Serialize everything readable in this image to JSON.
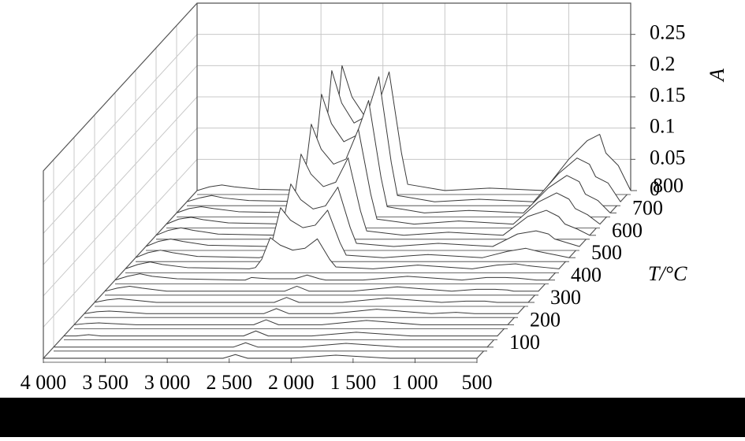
{
  "chart_data": {
    "type": "waterfall",
    "x_title": "",
    "y_title": "T/°C",
    "z_title": "A",
    "color": "#3a3a3a",
    "grid": true,
    "xlim": [
      4000,
      500
    ],
    "xticks": [
      {
        "value": 4000,
        "label": "4 000"
      },
      {
        "value": 3500,
        "label": "3 500"
      },
      {
        "value": 3000,
        "label": "3 000"
      },
      {
        "value": 2500,
        "label": "2 500"
      },
      {
        "value": 2000,
        "label": "2 000"
      },
      {
        "value": 1500,
        "label": "1 500"
      },
      {
        "value": 1000,
        "label": "1 000"
      },
      500
    ],
    "ylim": [
      50,
      800
    ],
    "yticks": [
      100,
      200,
      300,
      400,
      500,
      600,
      700,
      800
    ],
    "zlim": [
      0,
      0.3
    ],
    "zticks": [
      0,
      0.05,
      0.1,
      0.15,
      0.2,
      0.25
    ],
    "x": [
      4000,
      3900,
      3800,
      3700,
      3500,
      3000,
      2950,
      2900,
      2830,
      2750,
      2650,
      2550,
      2450,
      2350,
      2300,
      2000,
      1640,
      1200,
      1000,
      850,
      750,
      700,
      600,
      500
    ],
    "temperatures": [
      50,
      100,
      150,
      200,
      250,
      300,
      350,
      400,
      450,
      500,
      550,
      600,
      650,
      700,
      750,
      800
    ],
    "series": [
      {
        "values": [
          0,
          0,
          0,
          0,
          0,
          0,
          0,
          0,
          0,
          0,
          0,
          0,
          0.006,
          0,
          0,
          0,
          0.005,
          0,
          0,
          0,
          0,
          0,
          0,
          0
        ]
      },
      {
        "values": [
          0,
          0,
          0,
          0,
          0,
          0,
          0,
          0,
          0,
          0,
          0,
          0,
          0.007,
          0,
          0,
          0,
          0.006,
          0,
          0,
          0,
          0,
          0,
          0,
          0
        ]
      },
      {
        "values": [
          0,
          0,
          0.002,
          0,
          0,
          0,
          0,
          0,
          0,
          0,
          0,
          0,
          0.008,
          0,
          0,
          0,
          0.006,
          0,
          0,
          0,
          0,
          0,
          0,
          0
        ]
      },
      {
        "values": [
          0,
          0.002,
          0.003,
          0.002,
          0,
          0,
          0,
          0,
          0,
          0,
          0,
          0,
          0.008,
          0,
          0,
          0,
          0.007,
          0,
          0,
          0,
          0,
          0,
          0,
          0
        ]
      },
      {
        "values": [
          0,
          0.003,
          0.004,
          0.003,
          0,
          0,
          0,
          0,
          0,
          0,
          0,
          0,
          0.008,
          0,
          0,
          0,
          0.007,
          0,
          0.002,
          0,
          0,
          0,
          0,
          0
        ]
      },
      {
        "values": [
          0,
          0.004,
          0.006,
          0.004,
          0,
          0,
          0,
          0,
          0,
          0,
          0,
          0,
          0.008,
          0,
          0,
          0,
          0.007,
          0,
          0.002,
          0.002,
          0,
          0,
          0,
          0
        ]
      },
      {
        "values": [
          0,
          0.005,
          0.008,
          0.005,
          0,
          0,
          0,
          0,
          0,
          0,
          0,
          0,
          0.008,
          0,
          0,
          0,
          0.007,
          0,
          0.003,
          0.003,
          0.002,
          0,
          0,
          0
        ]
      },
      {
        "values": [
          0,
          0.006,
          0.01,
          0.006,
          0.002,
          0,
          0,
          0.004,
          0.003,
          0.002,
          0.002,
          0.002,
          0.008,
          0.002,
          0,
          0,
          0.006,
          0,
          0.004,
          0.004,
          0.003,
          0.002,
          0,
          0
        ]
      },
      {
        "values": [
          0,
          0.007,
          0.011,
          0.007,
          0.002,
          0,
          0.002,
          0.015,
          0.05,
          0.038,
          0.03,
          0.033,
          0.048,
          0.015,
          0.003,
          0,
          0.006,
          0,
          0.006,
          0.008,
          0.005,
          0.004,
          0.002,
          0
        ]
      },
      {
        "values": [
          0,
          0.008,
          0.012,
          0.008,
          0.002,
          0,
          0.003,
          0.024,
          0.08,
          0.06,
          0.048,
          0.052,
          0.076,
          0.024,
          0.004,
          0,
          0.005,
          0,
          0.01,
          0.015,
          0.01,
          0.008,
          0.004,
          0
        ]
      },
      {
        "values": [
          0,
          0.008,
          0.012,
          0.008,
          0.002,
          0,
          0.003,
          0.03,
          0.1,
          0.075,
          0.06,
          0.065,
          0.095,
          0.03,
          0.005,
          0,
          0.005,
          0,
          0.02,
          0.025,
          0.02,
          0.012,
          0.006,
          0
        ]
      },
      {
        "values": [
          0,
          0.008,
          0.012,
          0.008,
          0.002,
          0,
          0.004,
          0.039,
          0.13,
          0.098,
          0.078,
          0.085,
          0.124,
          0.039,
          0.007,
          0,
          0.005,
          0,
          0.03,
          0.04,
          0.03,
          0.018,
          0.01,
          0
        ]
      },
      {
        "values": [
          0,
          0.008,
          0.011,
          0.007,
          0.002,
          0,
          0.004,
          0.048,
          0.16,
          0.12,
          0.096,
          0.104,
          0.152,
          0.048,
          0.008,
          0,
          0.005,
          0,
          0.035,
          0.05,
          0.04,
          0.025,
          0.015,
          0
        ]
      },
      {
        "values": [
          0,
          0.007,
          0.01,
          0.007,
          0.002,
          0,
          0.005,
          0.057,
          0.19,
          0.143,
          0.114,
          0.124,
          0.18,
          0.057,
          0.01,
          0,
          0.004,
          0,
          0.04,
          0.06,
          0.05,
          0.03,
          0.02,
          0
        ]
      },
      {
        "values": [
          0,
          0.006,
          0.01,
          0.006,
          0.002,
          0,
          0.005,
          0.063,
          0.21,
          0.158,
          0.126,
          0.137,
          0.2,
          0.063,
          0.01,
          0,
          0.004,
          0,
          0.045,
          0.07,
          0.06,
          0.04,
          0.03,
          0
        ]
      },
      {
        "values": [
          0,
          0.006,
          0.009,
          0.006,
          0.002,
          0,
          0.005,
          0.06,
          0.2,
          0.15,
          0.12,
          0.13,
          0.19,
          0.06,
          0.01,
          0,
          0.004,
          0,
          0.05,
          0.08,
          0.09,
          0.06,
          0.04,
          0
        ]
      }
    ]
  }
}
